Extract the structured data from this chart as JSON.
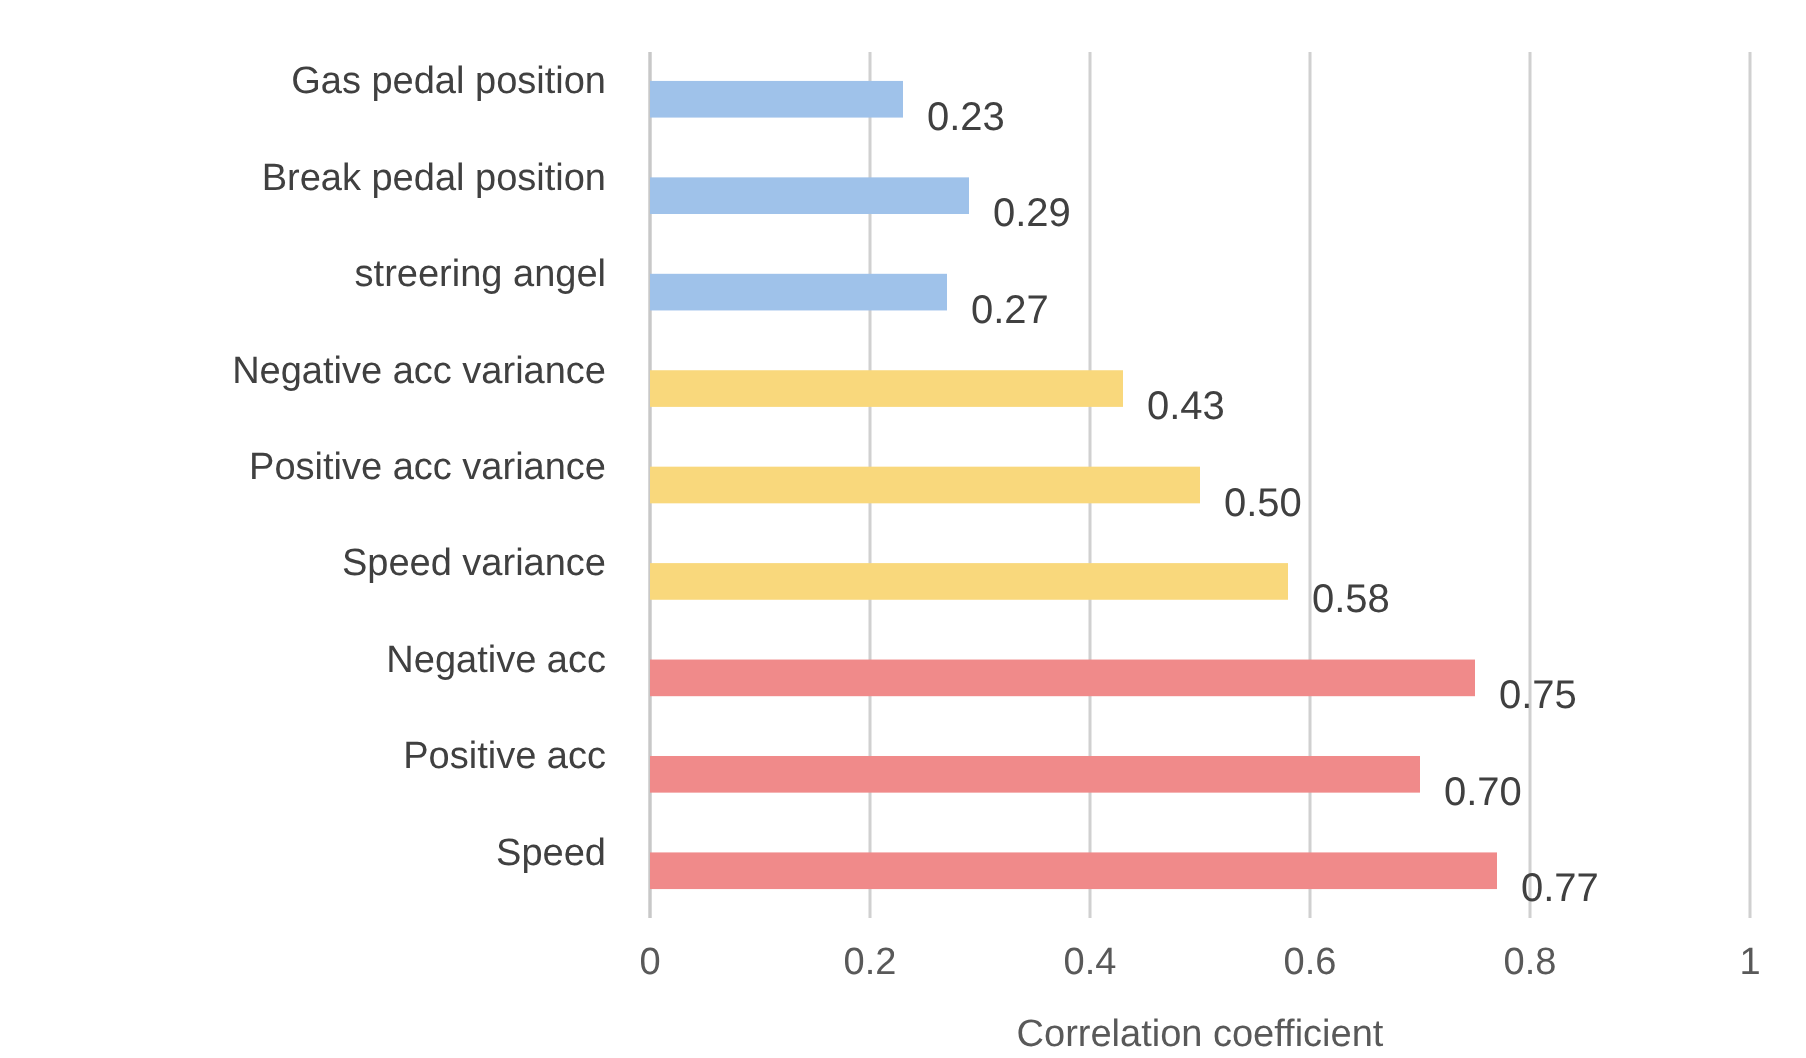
{
  "chart_data": {
    "type": "bar",
    "orientation": "horizontal",
    "xlabel": "Correlation coefficient",
    "categories": [
      "Gas pedal position",
      "Break pedal position",
      "streering angel",
      "Negative acc variance",
      "Positive acc variance",
      "Speed variance",
      "Negative acc",
      "Positive acc",
      "Speed"
    ],
    "values": [
      0.23,
      0.29,
      0.27,
      0.43,
      0.5,
      0.58,
      0.75,
      0.7,
      0.77
    ],
    "value_labels": [
      "0.23",
      "0.29",
      "0.27",
      "0.43",
      "0.50",
      "0.58",
      "0.75",
      "0.70",
      "0.77"
    ],
    "colors": [
      "#9fc2ea",
      "#9fc2ea",
      "#9fc2ea",
      "#f9d87c",
      "#f9d87c",
      "#f9d87c",
      "#f08a8a",
      "#f08a8a",
      "#f08a8a"
    ],
    "xlim": [
      0,
      1
    ],
    "xticks": [
      0,
      0.2,
      0.4,
      0.6,
      0.8,
      1
    ],
    "grid": "x"
  }
}
